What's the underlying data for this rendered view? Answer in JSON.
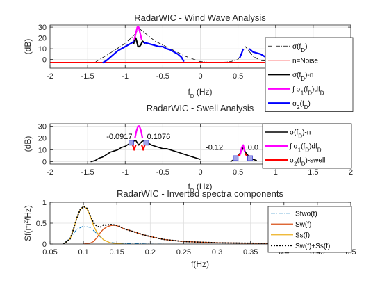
{
  "chart_data": [
    {
      "type": "line",
      "title": "RadarWIC - Wind Wave Analysis",
      "ylabel": "(dB)",
      "xlabel_main": "f",
      "xlabel_sub": "D",
      "xlabel_unit": " (Hz)",
      "xlim": [
        -2,
        2
      ],
      "ylim": [
        -8,
        32
      ],
      "xticks": [
        -2,
        -1.5,
        -1,
        -0.5,
        0,
        0.5,
        1,
        1.5,
        2
      ],
      "xtick_labels": [
        "-2",
        "-1.5",
        "-1",
        "-0.5",
        "0",
        "0.5",
        "1",
        "1.5",
        "2"
      ],
      "yticks": [
        0,
        10,
        20,
        30
      ],
      "ytick_labels": [
        "0",
        "10",
        "20",
        "30"
      ],
      "grid": true,
      "legend_position": "right",
      "series": [
        {
          "key": "sigma",
          "label": [
            [
              "σ(f",
              ""
            ],
            [
              "D",
              "sub"
            ],
            [
              ")",
              ""
            ]
          ],
          "color": "#000000",
          "width": 0.8,
          "dash": "6,2,1,2",
          "x": [
            -2,
            -1.6,
            -1.4,
            -1.2,
            -1.0,
            -0.8,
            -0.6,
            -0.4,
            -0.2,
            0.0,
            0.2,
            0.4,
            0.5,
            0.6,
            0.7,
            0.8,
            1.0,
            1.2,
            1.5,
            1.8,
            2.0
          ],
          "y": [
            -3,
            -3,
            -2.5,
            6,
            15,
            28,
            17,
            10,
            3,
            -2,
            -3,
            -2,
            0,
            12,
            3,
            -1,
            -2,
            -2,
            -3,
            -3,
            -3
          ]
        },
        {
          "key": "noise",
          "label": [
            [
              "n=Noise",
              ""
            ]
          ],
          "color": "#ff0000",
          "width": 1,
          "x": [
            -2,
            2
          ],
          "y": [
            -2.5,
            -2.5
          ]
        },
        {
          "key": "sigman",
          "label": [
            [
              "σ(f",
              ""
            ],
            [
              "D",
              "sub"
            ],
            [
              ")-n",
              ""
            ]
          ],
          "color": "#000000",
          "width": 2.2,
          "x": [
            -0.89,
            -0.88,
            -0.86,
            -0.84,
            -0.83,
            -0.81,
            -0.79,
            -0.77,
            -0.75,
            -0.73
          ],
          "y": [
            14,
            17,
            20,
            15,
            12,
            12,
            14,
            17,
            16,
            15
          ]
        },
        {
          "key": "integ1",
          "label": [
            [
              "∫ σ",
              ""
            ],
            [
              "1",
              "sub"
            ],
            [
              "(f",
              ""
            ],
            [
              "D",
              "sub"
            ],
            [
              ")df",
              ""
            ],
            [
              "D",
              "sub"
            ]
          ],
          "color": "#ff00ff",
          "width": 2.2,
          "x": [
            -0.88,
            -0.86,
            -0.84,
            -0.82,
            -0.8,
            -0.78
          ],
          "y": [
            18,
            24,
            30,
            30,
            24,
            18
          ]
        },
        {
          "key": "sigma2",
          "label": [
            [
              "σ",
              ""
            ],
            [
              "2",
              "sub"
            ],
            [
              "(f",
              ""
            ],
            [
              "D",
              "sub"
            ],
            [
              ")",
              ""
            ]
          ],
          "color": "#0000ff",
          "width": 2.2,
          "x": [
            -1.3,
            -1.25,
            -1.2,
            -1.15,
            -1.1,
            -1.05,
            -1.0,
            -0.95,
            -0.9,
            -0.88,
            null,
            -0.76,
            -0.7,
            -0.65,
            -0.6,
            -0.55,
            -0.5,
            -0.45,
            -0.4,
            -0.35,
            -0.3,
            -0.25,
            -0.22,
            null,
            0.52,
            0.55,
            0.57,
            null,
            0.65,
            0.7,
            0.75,
            0.8,
            0.85,
            0.9,
            0.95,
            1.0
          ],
          "y": [
            -3,
            -1,
            2,
            5,
            8,
            10,
            12,
            14,
            16,
            17,
            null,
            16,
            15,
            14,
            13,
            12,
            12,
            10,
            9,
            7,
            5,
            2,
            -2,
            null,
            1,
            6,
            10,
            null,
            10,
            7,
            6,
            5,
            3,
            1,
            -1,
            -3
          ]
        }
      ]
    },
    {
      "type": "line",
      "title": "RadarWIC - Swell Analysis",
      "ylabel": "(dB)",
      "xlabel_main": "f",
      "xlabel_sub": "D",
      "xlabel_unit": " (Hz)",
      "xlim": [
        -2,
        2
      ],
      "ylim": [
        -2,
        32
      ],
      "xticks": [
        -2,
        -1.5,
        -1,
        -0.5,
        0,
        0.5,
        1,
        1.5,
        2
      ],
      "xtick_labels": [
        "-2",
        "-1.5",
        "-1",
        "-0.5",
        "0",
        "0.5",
        "1",
        "1.5",
        "2"
      ],
      "yticks": [
        0,
        10,
        20,
        30
      ],
      "ytick_labels": [
        "0",
        "10",
        "20",
        "30"
      ],
      "grid": true,
      "legend_position": "right",
      "annotations": [
        {
          "text": "-0.0917",
          "x": -1.25,
          "y": 19
        },
        {
          "text": "0.1076",
          "x": -0.71,
          "y": 19
        },
        {
          "text": "-0.12",
          "x": 0.07,
          "y": 10
        },
        {
          "text": "0.0",
          "x": 0.63,
          "y": 10
        }
      ],
      "markers": [
        {
          "x": -0.92,
          "y": 16
        },
        {
          "x": -0.72,
          "y": 16
        },
        {
          "x": 0.47,
          "y": 3
        },
        {
          "x": 0.66,
          "y": 3
        }
      ],
      "series": [
        {
          "key": "sigman",
          "label": [
            [
              "σ(f",
              ""
            ],
            [
              "D",
              "sub"
            ],
            [
              ")-n",
              ""
            ]
          ],
          "color": "#000000",
          "width": 1.6,
          "x": [
            -1.46,
            -1.4,
            -1.35,
            -1.3,
            -1.25,
            -1.2,
            -1.15,
            -1.1,
            -1.05,
            -1.0,
            -0.95,
            -0.9,
            -0.86,
            -0.84,
            -0.82,
            -0.78,
            -0.74,
            -0.7,
            -0.65,
            -0.6,
            -0.55,
            -0.5,
            -0.45,
            -0.4,
            -0.35,
            -0.3,
            -0.25,
            -0.2,
            -0.15,
            -0.1,
            -0.05,
            0.0,
            null,
            0.4,
            0.45,
            0.5,
            0.55,
            0.57,
            0.6,
            0.65,
            0.7,
            0.75
          ],
          "y": [
            0,
            1,
            3,
            4,
            6,
            8,
            9,
            10,
            12,
            13,
            15,
            17,
            18,
            16,
            14,
            17,
            18,
            16,
            14,
            13,
            12,
            11,
            11,
            10,
            9,
            8,
            7,
            6,
            5,
            4,
            3,
            2,
            null,
            0,
            2,
            5,
            9,
            12,
            8,
            4,
            2,
            1
          ]
        },
        {
          "key": "integ1",
          "label": [
            [
              "∫ σ",
              ""
            ],
            [
              "1",
              "sub"
            ],
            [
              "(f",
              ""
            ],
            [
              "D",
              "sub"
            ],
            [
              ")df",
              ""
            ],
            [
              "D",
              "sub"
            ]
          ],
          "color": "#ff00ff",
          "width": 2.2,
          "x": [
            -0.87,
            -0.85,
            -0.83,
            -0.81,
            -0.79,
            -0.77,
            null,
            0.53,
            0.55,
            0.57,
            0.59
          ],
          "y": [
            20,
            26,
            30,
            30,
            26,
            20,
            null,
            6,
            12,
            14,
            8
          ]
        },
        {
          "key": "sigma2",
          "label": [
            [
              "σ",
              ""
            ],
            [
              "2",
              "sub"
            ],
            [
              "(f",
              ""
            ],
            [
              "D",
              "sub"
            ],
            [
              ")-swell",
              ""
            ]
          ],
          "color": "#ff0000",
          "width": 2.2,
          "x": [
            -0.92,
            -0.9,
            -0.88,
            -0.86,
            null,
            -0.78,
            -0.76,
            -0.74,
            -0.72,
            null,
            0.47,
            0.5,
            0.53,
            null,
            0.59,
            0.62,
            0.66
          ],
          "y": [
            16,
            14,
            10,
            14,
            null,
            14,
            10,
            14,
            16,
            null,
            3,
            5,
            6,
            null,
            7,
            5,
            3
          ]
        }
      ]
    },
    {
      "type": "line",
      "title": "RadarWIC - Inverted spectra components",
      "ylabel_main": "Sf(m",
      "ylabel_sup": "2",
      "ylabel_tail": "/Hz)",
      "xlabel": "f(Hz)",
      "xlim": [
        0.05,
        0.5
      ],
      "ylim": [
        0,
        1
      ],
      "xticks": [
        0.05,
        0.1,
        0.15,
        0.2,
        0.25,
        0.3,
        0.35,
        0.4,
        0.45,
        0.5
      ],
      "xtick_labels": [
        "0.05",
        "0.1",
        "0.15",
        "0.2",
        "0.25",
        "0.3",
        "0.35",
        "0.4",
        "0.45",
        "0.5"
      ],
      "yticks": [
        0,
        0.5,
        1
      ],
      "ytick_labels": [
        "0",
        "0.5",
        "1"
      ],
      "grid": true,
      "legend_position": "top-right",
      "series": [
        {
          "key": "sfwo",
          "label": [
            [
              "Sfwo(f)",
              ""
            ]
          ],
          "color": "#0072bd",
          "width": 1,
          "dash": "6,2,1,2",
          "x": [
            0.07,
            0.08,
            0.09,
            0.1,
            0.11,
            0.12,
            0.13,
            0.14,
            0.15,
            0.16,
            0.18,
            0.2,
            0.22
          ],
          "y": [
            0,
            0.15,
            0.35,
            0.43,
            0.4,
            0.25,
            0.1,
            0.04,
            0.02,
            0.01,
            0.01,
            0.0,
            0.0
          ]
        },
        {
          "key": "sw",
          "label": [
            [
              "Sw(f)",
              ""
            ]
          ],
          "color": "#d95319",
          "width": 1.3,
          "x": [
            0.1,
            0.11,
            0.115,
            0.12,
            0.125,
            0.13,
            0.135,
            0.14,
            0.145,
            0.15,
            0.155,
            0.16,
            0.17,
            0.18,
            0.19,
            0.2,
            0.22,
            0.25,
            0.3,
            0.35,
            0.4,
            0.45,
            0.5
          ],
          "y": [
            0.0,
            0.02,
            0.06,
            0.15,
            0.27,
            0.36,
            0.41,
            0.44,
            0.45,
            0.44,
            0.41,
            0.37,
            0.32,
            0.27,
            0.22,
            0.18,
            0.11,
            0.06,
            0.03,
            0.02,
            0.01,
            0.01,
            0.0
          ]
        },
        {
          "key": "ss",
          "label": [
            [
              "Ss(f)",
              ""
            ]
          ],
          "color": "#edb120",
          "width": 1.3,
          "x": [
            0.07,
            0.08,
            0.085,
            0.09,
            0.095,
            0.1,
            0.105,
            0.11,
            0.115,
            0.12,
            0.13,
            0.14,
            0.15,
            0.16
          ],
          "y": [
            0.0,
            0.12,
            0.35,
            0.62,
            0.82,
            0.9,
            0.85,
            0.68,
            0.45,
            0.28,
            0.1,
            0.03,
            0.01,
            0.0
          ]
        },
        {
          "key": "sum",
          "label": [
            [
              "Sw(f)+Ss(f)",
              ""
            ]
          ],
          "color": "#000000",
          "width": 1.8,
          "dash": "2,2",
          "x": [
            0.07,
            0.08,
            0.085,
            0.09,
            0.095,
            0.1,
            0.105,
            0.11,
            0.115,
            0.12,
            0.125,
            0.13,
            0.135,
            0.14,
            0.145,
            0.15,
            0.155,
            0.16,
            0.17,
            0.18,
            0.19,
            0.2,
            0.22,
            0.25,
            0.3,
            0.35,
            0.4,
            0.45,
            0.5
          ],
          "y": [
            0.0,
            0.12,
            0.35,
            0.62,
            0.82,
            0.9,
            0.86,
            0.7,
            0.51,
            0.43,
            0.4,
            0.46,
            0.45,
            0.47,
            0.46,
            0.45,
            0.42,
            0.37,
            0.32,
            0.27,
            0.22,
            0.18,
            0.11,
            0.06,
            0.03,
            0.02,
            0.01,
            0.01,
            0.0
          ]
        }
      ]
    }
  ]
}
